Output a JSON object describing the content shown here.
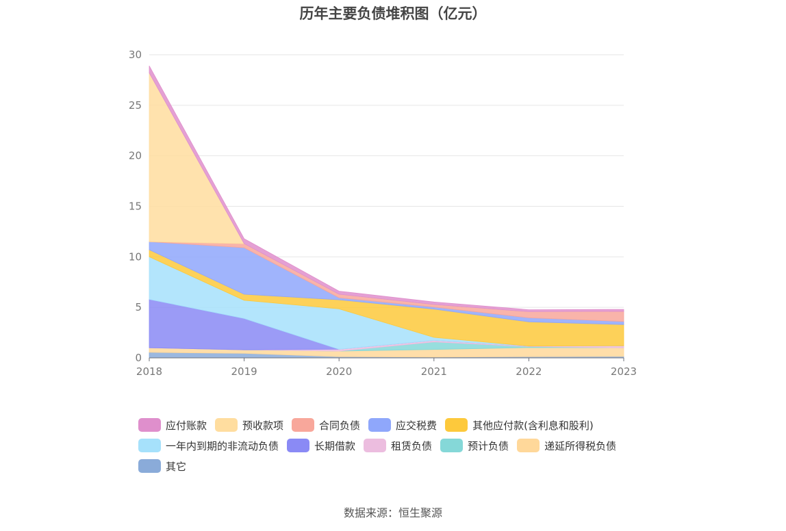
{
  "chart_data": {
    "type": "area",
    "stacked": true,
    "title": "历年主要负债堆积图（亿元）",
    "x": [
      "2018",
      "2019",
      "2020",
      "2021",
      "2022",
      "2023"
    ],
    "ylim": [
      0,
      30
    ],
    "yticks": [
      "0",
      "5",
      "10",
      "15",
      "20",
      "25",
      "30"
    ],
    "grid": true,
    "legend_position": "bottom",
    "series": [
      {
        "name": "其它",
        "color": "#8aabd9",
        "values": [
          0.55,
          0.45,
          0.12,
          0.08,
          0.12,
          0.15
        ]
      },
      {
        "name": "递延所得税负债",
        "color": "#ffd89a",
        "values": [
          0.45,
          0.35,
          0.55,
          0.75,
          0.9,
          0.85
        ]
      },
      {
        "name": "预计负债",
        "color": "#85d8d8",
        "values": [
          0.0,
          0.0,
          0.0,
          0.75,
          0.1,
          0.0
        ]
      },
      {
        "name": "租赁负债",
        "color": "#ecbddf",
        "values": [
          0.0,
          0.0,
          0.18,
          0.15,
          0.05,
          0.2
        ]
      },
      {
        "name": "长期借款",
        "color": "#8a8af5",
        "values": [
          4.8,
          3.1,
          0.0,
          0.0,
          0.0,
          0.0
        ]
      },
      {
        "name": "一年内到期的非流动负债",
        "color": "#a6e1fb",
        "values": [
          4.2,
          1.8,
          4.0,
          0.3,
          0.0,
          0.0
        ]
      },
      {
        "name": "其他应付款(含利息和股利)",
        "color": "#fdc93c",
        "values": [
          0.7,
          0.6,
          0.9,
          2.8,
          2.4,
          2.1
        ]
      },
      {
        "name": "应交税费",
        "color": "#8fa7fb",
        "values": [
          0.8,
          4.6,
          0.2,
          0.2,
          0.4,
          0.3
        ]
      },
      {
        "name": "合同负债",
        "color": "#f8a79b",
        "values": [
          0.0,
          0.4,
          0.35,
          0.25,
          0.6,
          1.0
        ]
      },
      {
        "name": "预收款项",
        "color": "#ffdd9f",
        "values": [
          16.7,
          0.0,
          0.0,
          0.0,
          0.0,
          0.0
        ]
      },
      {
        "name": "应付账款",
        "color": "#df8fcc",
        "values": [
          0.7,
          0.5,
          0.3,
          0.25,
          0.2,
          0.2
        ]
      }
    ],
    "legend_order": [
      "应付账款",
      "预收款项",
      "合同负债",
      "应交税费",
      "其他应付款(含利息和股利)",
      "一年内到期的非流动负债",
      "长期借款",
      "租赁负债",
      "预计负债",
      "递延所得税负债",
      "其它"
    ]
  },
  "source_note": "数据来源：恒生聚源"
}
